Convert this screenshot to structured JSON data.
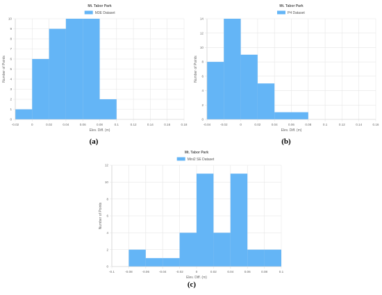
{
  "chart_data": [
    {
      "type": "bar",
      "title": "Mt. Tabor Park",
      "xlabel": "Elev. Diff. (m)",
      "ylabel": "Number of Points",
      "series": [
        {
          "name": "M3E Dataset",
          "values": [
            1,
            6,
            9,
            10,
            10,
            2
          ]
        }
      ],
      "bin_edges": [
        -0.02,
        0,
        0.02,
        0.04,
        0.06,
        0.08,
        0.1
      ],
      "xlim": [
        -0.02,
        0.18
      ],
      "ylim": [
        0,
        10
      ],
      "xticks": [
        "-0.02",
        "0",
        "0.02",
        "0.04",
        "0.06",
        "0.08",
        "0.1",
        "0.12",
        "0.14",
        "0.16",
        "0.18"
      ],
      "yticks": [
        "0",
        "1",
        "2",
        "3",
        "4",
        "5",
        "6",
        "7",
        "8",
        "9",
        "10"
      ],
      "color": "#64b5f6",
      "panel_label": "(a)"
    },
    {
      "type": "bar",
      "title": "Mt. Tabor Park",
      "xlabel": "Elev. Diff. (m)",
      "ylabel": "Number of Points",
      "series": [
        {
          "name": "P4 Dataset",
          "values": [
            8,
            14,
            9,
            5,
            1,
            1
          ]
        }
      ],
      "bin_edges": [
        -0.04,
        -0.02,
        0,
        0.02,
        0.04,
        0.06,
        0.08
      ],
      "xlim": [
        -0.04,
        0.16
      ],
      "ylim": [
        0,
        14
      ],
      "xticks": [
        "-0.04",
        "-0.02",
        "0",
        "0.02",
        "0.04",
        "0.06",
        "0.08",
        "0.1",
        "0.12",
        "0.14",
        "0.16"
      ],
      "yticks": [
        "0",
        "2",
        "4",
        "6",
        "8",
        "10",
        "12",
        "14"
      ],
      "color": "#64b5f6",
      "panel_label": "(b)"
    },
    {
      "type": "bar",
      "title": "Mt. Tabor Park",
      "xlabel": "Elev. Diff. (m)",
      "ylabel": "Number of Points",
      "series": [
        {
          "name": "Mini2 SE Dataset",
          "values": [
            2,
            1,
            1,
            4,
            11,
            4,
            11,
            2,
            2
          ]
        }
      ],
      "bin_edges": [
        -0.08,
        -0.06,
        -0.04,
        -0.02,
        0,
        0.02,
        0.04,
        0.06,
        0.08,
        0.1
      ],
      "xlim": [
        -0.1,
        0.1
      ],
      "ylim": [
        0,
        12
      ],
      "xticks": [
        "-0.1",
        "-0.08",
        "-0.06",
        "-0.04",
        "-0.02",
        "0",
        "0.02",
        "0.04",
        "0.06",
        "0.08",
        "0.1"
      ],
      "yticks": [
        "0",
        "2",
        "4",
        "6",
        "8",
        "10",
        "12"
      ],
      "color": "#64b5f6",
      "panel_label": "(c)"
    }
  ]
}
